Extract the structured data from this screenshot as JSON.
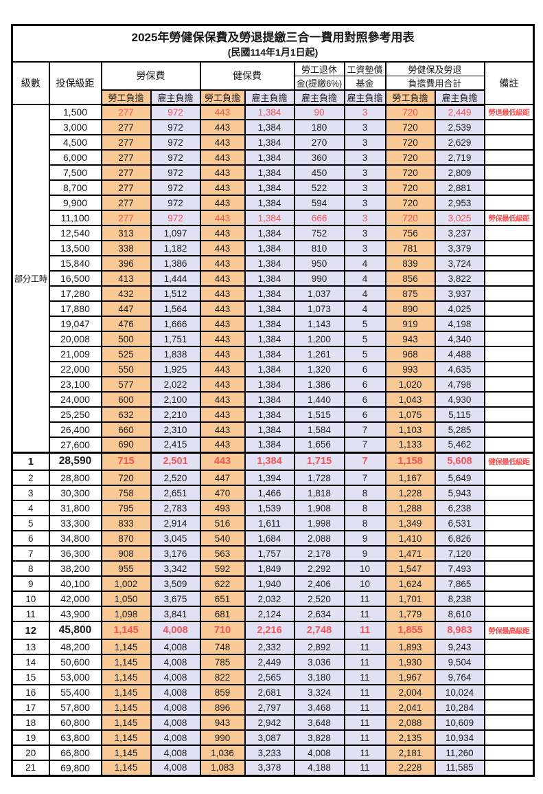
{
  "title": "2025年勞健保保費及勞退提繳三合一費用對照參考用表",
  "subtitle": "(民國114年1月1日起)",
  "colors": {
    "employee_bg": "#F8C995",
    "employer_bg": "#E2E1F3",
    "highlight_red": "#FA5252",
    "grid": "#000000"
  },
  "header": {
    "level": "級數",
    "bracket": "投保級距",
    "labor_ins": "勞保費",
    "health_ins": "健保費",
    "pension_line1": "勞工退休",
    "pension_line2": "金(提繳6%)",
    "fund_line1": "工資墊償",
    "fund_line2": "基金",
    "total_line1": "勞健保及勞退",
    "total_line2": "負擔費用合計",
    "remark": "備註",
    "employee": "勞工負擔",
    "employer": "雇主負擔"
  },
  "part_time_label": "部分工時",
  "part_time_span": 23,
  "rows": [
    {
      "level": "",
      "bracket": "1,500",
      "values": [
        "277",
        "972",
        "443",
        "1,384",
        "90",
        "3",
        "720",
        "2,449"
      ],
      "remark": "勞退最低級距",
      "red": true
    },
    {
      "level": "",
      "bracket": "3,000",
      "values": [
        "277",
        "972",
        "443",
        "1,384",
        "180",
        "3",
        "720",
        "2,539"
      ],
      "remark": ""
    },
    {
      "level": "",
      "bracket": "4,500",
      "values": [
        "277",
        "972",
        "443",
        "1,384",
        "270",
        "3",
        "720",
        "2,629"
      ],
      "remark": ""
    },
    {
      "level": "",
      "bracket": "6,000",
      "values": [
        "277",
        "972",
        "443",
        "1,384",
        "360",
        "3",
        "720",
        "2,719"
      ],
      "remark": ""
    },
    {
      "level": "",
      "bracket": "7,500",
      "values": [
        "277",
        "972",
        "443",
        "1,384",
        "450",
        "3",
        "720",
        "2,809"
      ],
      "remark": ""
    },
    {
      "level": "",
      "bracket": "8,700",
      "values": [
        "277",
        "972",
        "443",
        "1,384",
        "522",
        "3",
        "720",
        "2,881"
      ],
      "remark": ""
    },
    {
      "level": "",
      "bracket": "9,900",
      "values": [
        "277",
        "972",
        "443",
        "1,384",
        "594",
        "3",
        "720",
        "2,953"
      ],
      "remark": ""
    },
    {
      "level": "",
      "bracket": "11,100",
      "values": [
        "277",
        "972",
        "443",
        "1,384",
        "666",
        "3",
        "720",
        "3,025"
      ],
      "remark": "勞保最低級距",
      "red": true
    },
    {
      "level": "",
      "bracket": "12,540",
      "values": [
        "313",
        "1,097",
        "443",
        "1,384",
        "752",
        "3",
        "756",
        "3,237"
      ],
      "remark": ""
    },
    {
      "level": "",
      "bracket": "13,500",
      "values": [
        "338",
        "1,182",
        "443",
        "1,384",
        "810",
        "3",
        "781",
        "3,379"
      ],
      "remark": ""
    },
    {
      "level": "",
      "bracket": "15,840",
      "values": [
        "396",
        "1,386",
        "443",
        "1,384",
        "950",
        "4",
        "839",
        "3,724"
      ],
      "remark": ""
    },
    {
      "level": "",
      "bracket": "16,500",
      "values": [
        "413",
        "1,444",
        "443",
        "1,384",
        "990",
        "4",
        "856",
        "3,822"
      ],
      "remark": ""
    },
    {
      "level": "",
      "bracket": "17,280",
      "values": [
        "432",
        "1,512",
        "443",
        "1,384",
        "1,037",
        "4",
        "875",
        "3,937"
      ],
      "remark": ""
    },
    {
      "level": "",
      "bracket": "17,880",
      "values": [
        "447",
        "1,564",
        "443",
        "1,384",
        "1,073",
        "4",
        "890",
        "4,025"
      ],
      "remark": ""
    },
    {
      "level": "",
      "bracket": "19,047",
      "values": [
        "476",
        "1,666",
        "443",
        "1,384",
        "1,143",
        "5",
        "919",
        "4,198"
      ],
      "remark": ""
    },
    {
      "level": "",
      "bracket": "20,008",
      "values": [
        "500",
        "1,751",
        "443",
        "1,384",
        "1,200",
        "5",
        "943",
        "4,340"
      ],
      "remark": ""
    },
    {
      "level": "",
      "bracket": "21,009",
      "values": [
        "525",
        "1,838",
        "443",
        "1,384",
        "1,261",
        "5",
        "968",
        "4,488"
      ],
      "remark": ""
    },
    {
      "level": "",
      "bracket": "22,000",
      "values": [
        "550",
        "1,925",
        "443",
        "1,384",
        "1,320",
        "6",
        "993",
        "4,635"
      ],
      "remark": ""
    },
    {
      "level": "",
      "bracket": "23,100",
      "values": [
        "577",
        "2,022",
        "443",
        "1,384",
        "1,386",
        "6",
        "1,020",
        "4,798"
      ],
      "remark": ""
    },
    {
      "level": "",
      "bracket": "24,000",
      "values": [
        "600",
        "2,100",
        "443",
        "1,384",
        "1,440",
        "6",
        "1,043",
        "4,930"
      ],
      "remark": ""
    },
    {
      "level": "",
      "bracket": "25,250",
      "values": [
        "632",
        "2,210",
        "443",
        "1,384",
        "1,515",
        "6",
        "1,075",
        "5,115"
      ],
      "remark": ""
    },
    {
      "level": "",
      "bracket": "26,400",
      "values": [
        "660",
        "2,310",
        "443",
        "1,384",
        "1,584",
        "7",
        "1,103",
        "5,285"
      ],
      "remark": ""
    },
    {
      "level": "",
      "bracket": "27,600",
      "values": [
        "690",
        "2,415",
        "443",
        "1,384",
        "1,656",
        "7",
        "1,133",
        "5,462"
      ],
      "remark": ""
    },
    {
      "level": "1",
      "bracket": "28,590",
      "values": [
        "715",
        "2,501",
        "443",
        "1,384",
        "1,715",
        "7",
        "1,158",
        "5,608"
      ],
      "remark": "健保最低級距",
      "red": true,
      "bold": true,
      "sep": true
    },
    {
      "level": "2",
      "bracket": "28,800",
      "values": [
        "720",
        "2,520",
        "447",
        "1,394",
        "1,728",
        "7",
        "1,167",
        "5,649"
      ],
      "remark": ""
    },
    {
      "level": "3",
      "bracket": "30,300",
      "values": [
        "758",
        "2,651",
        "470",
        "1,466",
        "1,818",
        "8",
        "1,228",
        "5,943"
      ],
      "remark": ""
    },
    {
      "level": "4",
      "bracket": "31,800",
      "values": [
        "795",
        "2,783",
        "493",
        "1,539",
        "1,908",
        "8",
        "1,288",
        "6,238"
      ],
      "remark": ""
    },
    {
      "level": "5",
      "bracket": "33,300",
      "values": [
        "833",
        "2,914",
        "516",
        "1,611",
        "1,998",
        "8",
        "1,349",
        "6,531"
      ],
      "remark": ""
    },
    {
      "level": "6",
      "bracket": "34,800",
      "values": [
        "870",
        "3,045",
        "540",
        "1,684",
        "2,088",
        "9",
        "1,410",
        "6,826"
      ],
      "remark": ""
    },
    {
      "level": "7",
      "bracket": "36,300",
      "values": [
        "908",
        "3,176",
        "563",
        "1,757",
        "2,178",
        "9",
        "1,471",
        "7,120"
      ],
      "remark": ""
    },
    {
      "level": "8",
      "bracket": "38,200",
      "values": [
        "955",
        "3,342",
        "592",
        "1,849",
        "2,292",
        "10",
        "1,547",
        "7,493"
      ],
      "remark": ""
    },
    {
      "level": "9",
      "bracket": "40,100",
      "values": [
        "1,002",
        "3,509",
        "622",
        "1,940",
        "2,406",
        "10",
        "1,624",
        "7,865"
      ],
      "remark": ""
    },
    {
      "level": "10",
      "bracket": "42,000",
      "values": [
        "1,050",
        "3,675",
        "651",
        "2,032",
        "2,520",
        "11",
        "1,701",
        "8,238"
      ],
      "remark": ""
    },
    {
      "level": "11",
      "bracket": "43,900",
      "values": [
        "1,098",
        "3,841",
        "681",
        "2,124",
        "2,634",
        "11",
        "1,779",
        "8,610"
      ],
      "remark": ""
    },
    {
      "level": "12",
      "bracket": "45,800",
      "values": [
        "1,145",
        "4,008",
        "710",
        "2,216",
        "2,748",
        "11",
        "1,855",
        "8,983"
      ],
      "remark": "勞保最高級距",
      "red": true,
      "bold": true
    },
    {
      "level": "13",
      "bracket": "48,200",
      "values": [
        "1,145",
        "4,008",
        "748",
        "2,332",
        "2,892",
        "11",
        "1,893",
        "9,243"
      ],
      "remark": ""
    },
    {
      "level": "14",
      "bracket": "50,600",
      "values": [
        "1,145",
        "4,008",
        "785",
        "2,449",
        "3,036",
        "11",
        "1,930",
        "9,504"
      ],
      "remark": ""
    },
    {
      "level": "15",
      "bracket": "53,000",
      "values": [
        "1,145",
        "4,008",
        "822",
        "2,565",
        "3,180",
        "11",
        "1,967",
        "9,764"
      ],
      "remark": ""
    },
    {
      "level": "16",
      "bracket": "55,400",
      "values": [
        "1,145",
        "4,008",
        "859",
        "2,681",
        "3,324",
        "11",
        "2,004",
        "10,024"
      ],
      "remark": ""
    },
    {
      "level": "17",
      "bracket": "57,800",
      "values": [
        "1,145",
        "4,008",
        "896",
        "2,797",
        "3,468",
        "11",
        "2,041",
        "10,284"
      ],
      "remark": ""
    },
    {
      "level": "18",
      "bracket": "60,800",
      "values": [
        "1,145",
        "4,008",
        "943",
        "2,942",
        "3,648",
        "11",
        "2,088",
        "10,609"
      ],
      "remark": ""
    },
    {
      "level": "19",
      "bracket": "63,800",
      "values": [
        "1,145",
        "4,008",
        "990",
        "3,087",
        "3,828",
        "11",
        "2,135",
        "10,934"
      ],
      "remark": ""
    },
    {
      "level": "20",
      "bracket": "66,800",
      "values": [
        "1,145",
        "4,008",
        "1,036",
        "3,233",
        "4,008",
        "11",
        "2,181",
        "11,260"
      ],
      "remark": ""
    },
    {
      "level": "21",
      "bracket": "69,800",
      "values": [
        "1,145",
        "4,008",
        "1,083",
        "3,378",
        "4,188",
        "11",
        "2,228",
        "11,585"
      ],
      "remark": ""
    }
  ]
}
